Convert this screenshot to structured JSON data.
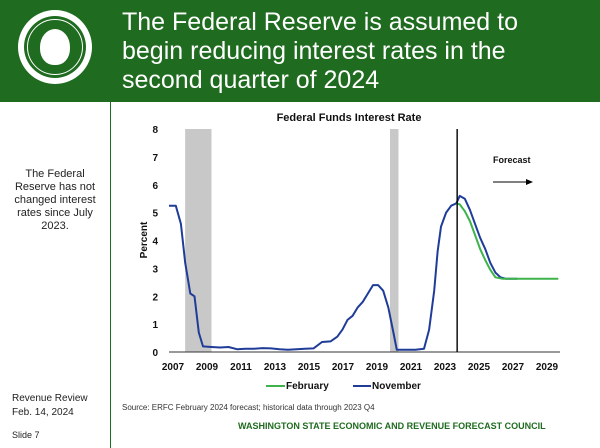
{
  "slide": {
    "title": "The Federal Reserve is assumed to begin reducing interest rates in the second quarter of 2024",
    "sidebar_text": "The Federal Reserve has not changed interest rates since July 2023.",
    "review_name": "Revenue Review",
    "review_date": "Feb. 14, 2024",
    "slide_number": "Slide 7",
    "source": "Source: ERFC February 2024 forecast; historical data through 2023 Q4",
    "council": "WASHINGTON STATE ECONOMIC AND REVENUE FORECAST COUNCIL"
  },
  "colors": {
    "brand_green": "#1f6b1f",
    "february": "#3db34a",
    "november": "#1f3c99",
    "recession": "#c8c8c8"
  },
  "chart_data": {
    "type": "line",
    "title": "Federal Funds Interest Rate",
    "ylabel": "Percent",
    "xlabel": "",
    "xlim": [
      2007,
      2030
    ],
    "ylim": [
      0,
      8
    ],
    "xticks": [
      2007,
      2009,
      2011,
      2013,
      2015,
      2017,
      2019,
      2021,
      2023,
      2025,
      2027,
      2029
    ],
    "yticks": [
      0,
      1,
      2,
      3,
      4,
      5,
      6,
      7,
      8
    ],
    "recessions": [
      [
        2007.95,
        2009.5
      ],
      [
        2020.0,
        2020.5
      ]
    ],
    "forecast_start": 2023.95,
    "forecast_label": "Forecast",
    "legend": [
      "February",
      "November"
    ],
    "series": [
      {
        "name": "November",
        "points": [
          [
            2007.0,
            5.25
          ],
          [
            2007.4,
            5.25
          ],
          [
            2007.7,
            4.6
          ],
          [
            2007.95,
            3.2
          ],
          [
            2008.25,
            2.1
          ],
          [
            2008.5,
            2.0
          ],
          [
            2008.75,
            0.7
          ],
          [
            2009.0,
            0.2
          ],
          [
            2009.5,
            0.18
          ],
          [
            2010.0,
            0.16
          ],
          [
            2010.5,
            0.18
          ],
          [
            2011.0,
            0.1
          ],
          [
            2011.5,
            0.12
          ],
          [
            2012.0,
            0.12
          ],
          [
            2012.5,
            0.14
          ],
          [
            2013.0,
            0.13
          ],
          [
            2013.5,
            0.1
          ],
          [
            2014.0,
            0.08
          ],
          [
            2014.5,
            0.1
          ],
          [
            2015.0,
            0.12
          ],
          [
            2015.5,
            0.13
          ],
          [
            2016.0,
            0.36
          ],
          [
            2016.5,
            0.38
          ],
          [
            2016.9,
            0.55
          ],
          [
            2017.2,
            0.8
          ],
          [
            2017.5,
            1.15
          ],
          [
            2017.8,
            1.3
          ],
          [
            2018.1,
            1.6
          ],
          [
            2018.4,
            1.8
          ],
          [
            2018.7,
            2.1
          ],
          [
            2019.0,
            2.4
          ],
          [
            2019.3,
            2.4
          ],
          [
            2019.6,
            2.2
          ],
          [
            2019.9,
            1.6
          ],
          [
            2020.2,
            0.7
          ],
          [
            2020.4,
            0.08
          ],
          [
            2021.0,
            0.08
          ],
          [
            2021.5,
            0.08
          ],
          [
            2022.0,
            0.12
          ],
          [
            2022.3,
            0.8
          ],
          [
            2022.6,
            2.2
          ],
          [
            2022.8,
            3.6
          ],
          [
            2023.0,
            4.5
          ],
          [
            2023.3,
            5.0
          ],
          [
            2023.6,
            5.25
          ],
          [
            2023.9,
            5.33
          ],
          [
            2024.1,
            5.6
          ],
          [
            2024.4,
            5.5
          ],
          [
            2024.7,
            5.1
          ],
          [
            2025.0,
            4.6
          ],
          [
            2025.3,
            4.1
          ],
          [
            2025.6,
            3.7
          ],
          [
            2025.9,
            3.2
          ],
          [
            2026.2,
            2.85
          ],
          [
            2026.5,
            2.68
          ],
          [
            2026.8,
            2.63
          ],
          [
            2027.2,
            2.63
          ],
          [
            2027.5,
            2.63
          ]
        ]
      },
      {
        "name": "February",
        "points": [
          [
            2023.9,
            5.33
          ],
          [
            2024.1,
            5.3
          ],
          [
            2024.4,
            5.05
          ],
          [
            2024.7,
            4.7
          ],
          [
            2025.0,
            4.2
          ],
          [
            2025.3,
            3.7
          ],
          [
            2025.6,
            3.3
          ],
          [
            2025.9,
            2.95
          ],
          [
            2026.2,
            2.68
          ],
          [
            2026.6,
            2.63
          ],
          [
            2027.0,
            2.63
          ],
          [
            2027.5,
            2.63
          ],
          [
            2028.0,
            2.63
          ],
          [
            2028.5,
            2.63
          ],
          [
            2029.0,
            2.63
          ],
          [
            2029.5,
            2.63
          ],
          [
            2029.9,
            2.63
          ]
        ]
      }
    ]
  }
}
